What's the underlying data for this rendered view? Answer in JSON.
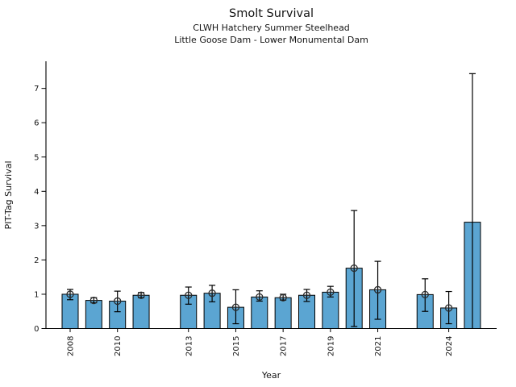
{
  "window": {
    "background": "#ffffff"
  },
  "chart_data": {
    "type": "bar",
    "title": "Smolt Survival",
    "subtitle1": "CLWH Hatchery Summer Steelhead",
    "subtitle2": "Little Goose Dam - Lower Monumental Dam",
    "xlabel": "Year",
    "ylabel": "PIT-Tag Survival",
    "grid": false,
    "legend": null,
    "ylim": [
      0,
      7.78
    ],
    "xlim": [
      2007,
      2026
    ],
    "yticks": [
      0,
      1,
      2,
      3,
      4,
      5,
      6,
      7
    ],
    "xtick_years": [
      2008,
      2010,
      2013,
      2015,
      2017,
      2019,
      2021,
      2024
    ],
    "bar_color": "#5ba5d2",
    "bar_edge_color": "#000000",
    "error_color": "#000000",
    "marker_style": "open-circle-plus",
    "marker_color": "#2a2a2a",
    "points": [
      {
        "year": 2008,
        "value": 1.0,
        "ci_low": 0.84,
        "ci_high": 1.14,
        "marker": true
      },
      {
        "year": 2009,
        "value": 0.82,
        "ci_low": 0.75,
        "ci_high": 0.9,
        "marker": true
      },
      {
        "year": 2010,
        "value": 0.8,
        "ci_low": 0.49,
        "ci_high": 1.09,
        "marker": true
      },
      {
        "year": 2011,
        "value": 0.97,
        "ci_low": 0.9,
        "ci_high": 1.05,
        "marker": true
      },
      {
        "year": 2013,
        "value": 0.97,
        "ci_low": 0.71,
        "ci_high": 1.21,
        "marker": true
      },
      {
        "year": 2014,
        "value": 1.03,
        "ci_low": 0.78,
        "ci_high": 1.26,
        "marker": true
      },
      {
        "year": 2015,
        "value": 0.62,
        "ci_low": 0.14,
        "ci_high": 1.13,
        "marker": true
      },
      {
        "year": 2016,
        "value": 0.92,
        "ci_low": 0.8,
        "ci_high": 1.1,
        "marker": true
      },
      {
        "year": 2017,
        "value": 0.9,
        "ci_low": 0.83,
        "ci_high": 1.0,
        "marker": true
      },
      {
        "year": 2018,
        "value": 0.97,
        "ci_low": 0.79,
        "ci_high": 1.14,
        "marker": true
      },
      {
        "year": 2019,
        "value": 1.06,
        "ci_low": 0.92,
        "ci_high": 1.23,
        "marker": true
      },
      {
        "year": 2020,
        "value": 1.76,
        "ci_low": 0.06,
        "ci_high": 3.44,
        "marker": true
      },
      {
        "year": 2021,
        "value": 1.13,
        "ci_low": 0.27,
        "ci_high": 1.96,
        "marker": true
      },
      {
        "year": 2023,
        "value": 0.99,
        "ci_low": 0.5,
        "ci_high": 1.45,
        "marker": true
      },
      {
        "year": 2024,
        "value": 0.6,
        "ci_low": 0.14,
        "ci_high": 1.08,
        "marker": true
      },
      {
        "year": 2025,
        "value": 3.1,
        "ci_low": 0.0,
        "ci_high": 7.43,
        "marker": false
      }
    ]
  }
}
